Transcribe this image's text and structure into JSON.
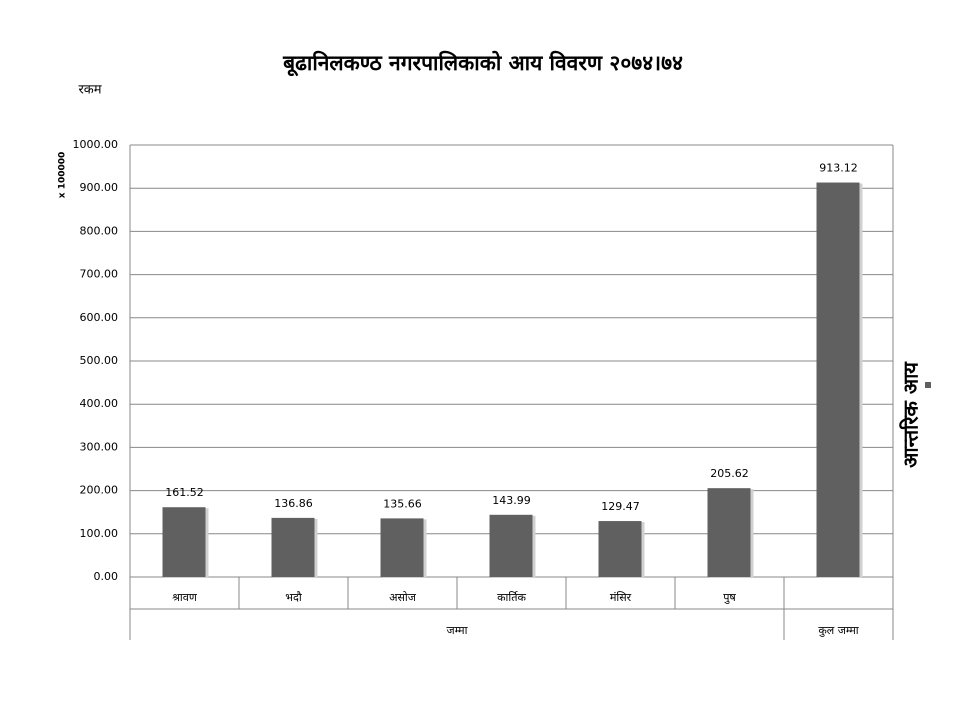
{
  "chart_data": {
    "type": "bar",
    "title": "बूढानिलकण्ठ नगरपालिकाको आय विवरण २०७४।७४",
    "y_axis_label": "रकम",
    "y_axis_unit": "x 100000",
    "categories": [
      "श्रावण",
      "भदौ",
      "असोज",
      "कार्तिक",
      "मंसिर",
      "पुष",
      null
    ],
    "category_groups": [
      "जम्मा",
      "जम्मा",
      "जम्मा",
      "जम्मा",
      "जम्मा",
      "जम्मा",
      "कुल जम्मा"
    ],
    "series": [
      {
        "name": "आन्तरिक आय",
        "color": "#606060",
        "values": [
          161.52,
          136.86,
          135.66,
          143.99,
          129.47,
          205.62,
          913.12
        ]
      }
    ],
    "ylim": [
      0,
      1000
    ],
    "yticks": [
      {
        "value": 0,
        "label": "0.00"
      },
      {
        "value": 100,
        "label": "100.00"
      },
      {
        "value": 200,
        "label": "200.00"
      },
      {
        "value": 300,
        "label": "300.00"
      },
      {
        "value": 400,
        "label": "400.00"
      },
      {
        "value": 500,
        "label": "500.00"
      },
      {
        "value": 600,
        "label": "600.00"
      },
      {
        "value": 700,
        "label": "700.00"
      },
      {
        "value": 800,
        "label": "800.00"
      },
      {
        "value": 900,
        "label": "900.00"
      },
      {
        "value": 1000,
        "label": "1000.00"
      }
    ],
    "grid": true,
    "legend": "right"
  }
}
